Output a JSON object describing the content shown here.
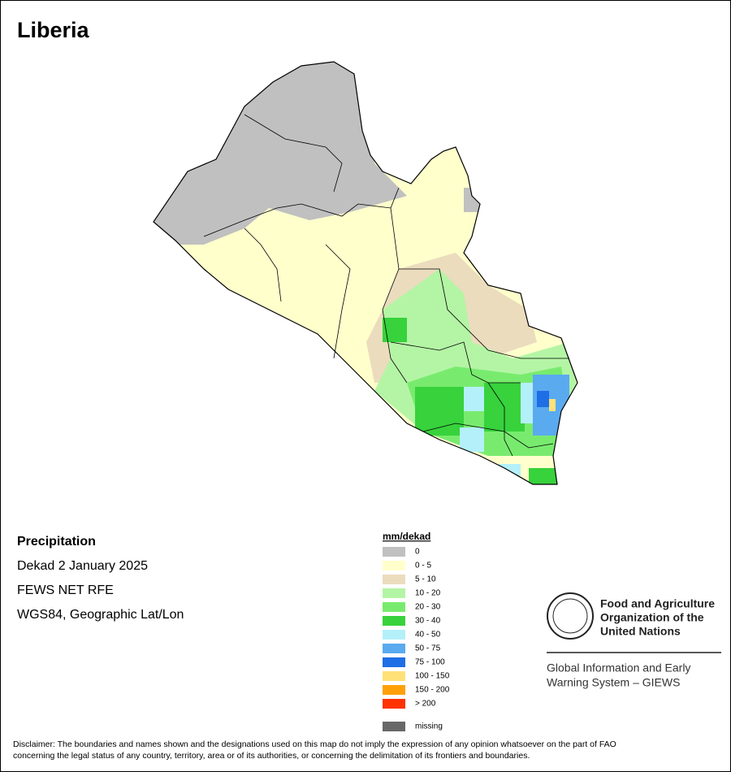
{
  "title": "Liberia",
  "info": {
    "heading": "Precipitation",
    "lines": [
      "Dekad 2 January 2025",
      "FEWS NET RFE",
      "WGS84, Geographic Lat/Lon"
    ]
  },
  "legend": {
    "title": "mm/dekad",
    "items": [
      {
        "label": "0",
        "color": "#c0c0c0"
      },
      {
        "label": "0 - 5",
        "color": "#ffffcc"
      },
      {
        "label": "5 - 10",
        "color": "#ebdcbe"
      },
      {
        "label": "10 - 20",
        "color": "#b4f5a5"
      },
      {
        "label": "20 - 30",
        "color": "#78eb6e"
      },
      {
        "label": "30 - 40",
        "color": "#37d23c"
      },
      {
        "label": "40 - 50",
        "color": "#b4f0fa"
      },
      {
        "label": "50 - 75",
        "color": "#5aaaf0"
      },
      {
        "label": "75 - 100",
        "color": "#1e6ee6"
      },
      {
        "label": "100 - 150",
        "color": "#ffe178"
      },
      {
        "label": "150 - 200",
        "color": "#ffa00a"
      },
      {
        "label": "> 200",
        "color": "#ff3200"
      }
    ],
    "missing": {
      "label": "missing",
      "color": "#686868"
    }
  },
  "logo": {
    "org": [
      "Food and Agriculture",
      "Organization of the",
      "United Nations"
    ],
    "system": [
      "Global Information and Early",
      "Warning System – GIEWS"
    ]
  },
  "disclaimer": [
    "Disclaimer: The boundaries and names shown and the designations used on this map do not imply the expression of any opinion whatsoever on the part of FAO",
    "concerning the legal status of any country, territory, area or of its authorities, or concerning the delimitation of its frontiers and boundaries."
  ]
}
